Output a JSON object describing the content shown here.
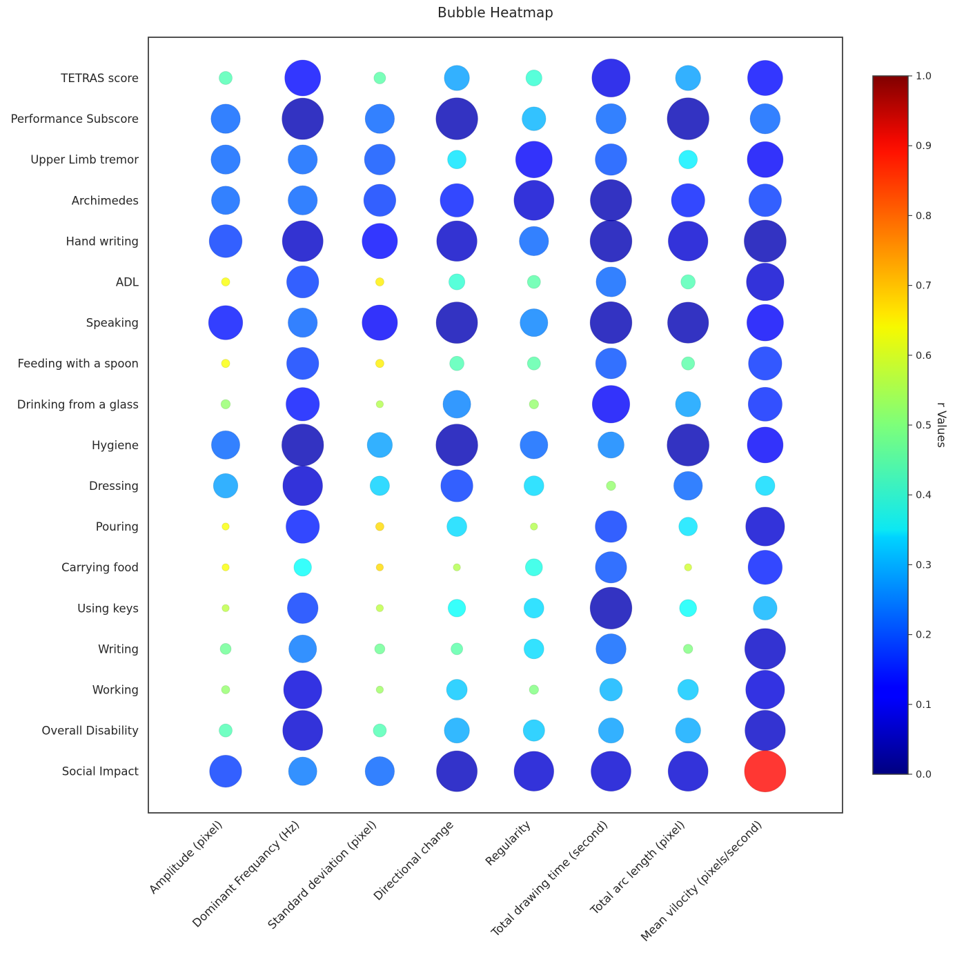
{
  "chart_data": {
    "type": "scatter",
    "subtype": "bubble-heatmap",
    "title": "Bubble Heatmap",
    "xlabel": "",
    "ylabel": "",
    "x_categories": [
      "Amplitude (pixel)",
      "Dominant Frequancy (Hz)",
      "Standard deviation (pixel)",
      "Directional change",
      "Regularity",
      "Total drawing time (second)",
      "Total arc length (pixel)",
      "Mean vilocity (pixels/second)"
    ],
    "y_categories": [
      "TETRAS score",
      "Performance Subscore ",
      "Upper Limb tremor ",
      "Archimedes ",
      "Hand writing ",
      "ADL",
      "Speaking",
      "Feeding with a spoon",
      "Drinking from a glass",
      "Hygiene",
      "Dressing ",
      "Pouring",
      "Carrying food",
      "Using keys ",
      "Writing ",
      "Working",
      "Overall Disability ",
      "Social Impact "
    ],
    "value_description": "each cell: r = colour value (jet colormap, 0-1); size = relative bubble magnitude (0-1)",
    "cells": [
      [
        [
          0.45,
          0.1
        ],
        [
          0.13,
          0.75
        ],
        [
          0.46,
          0.08
        ],
        [
          0.28,
          0.37
        ],
        [
          0.42,
          0.15
        ],
        [
          0.1,
          0.85
        ],
        [
          0.28,
          0.37
        ],
        [
          0.13,
          0.72
        ]
      ],
      [
        [
          0.22,
          0.5
        ],
        [
          0.05,
          1.0
        ],
        [
          0.22,
          0.5
        ],
        [
          0.05,
          1.02
        ],
        [
          0.3,
          0.33
        ],
        [
          0.22,
          0.53
        ],
        [
          0.05,
          1.02
        ],
        [
          0.22,
          0.53
        ]
      ],
      [
        [
          0.22,
          0.5
        ],
        [
          0.22,
          0.5
        ],
        [
          0.2,
          0.55
        ],
        [
          0.35,
          0.2
        ],
        [
          0.12,
          0.78
        ],
        [
          0.2,
          0.58
        ],
        [
          0.36,
          0.2
        ],
        [
          0.12,
          0.75
        ]
      ],
      [
        [
          0.22,
          0.47
        ],
        [
          0.22,
          0.5
        ],
        [
          0.18,
          0.6
        ],
        [
          0.15,
          0.65
        ],
        [
          0.08,
          0.93
        ],
        [
          0.05,
          1.0
        ],
        [
          0.15,
          0.65
        ],
        [
          0.18,
          0.62
        ]
      ],
      [
        [
          0.18,
          0.63
        ],
        [
          0.07,
          0.97
        ],
        [
          0.13,
          0.73
        ],
        [
          0.07,
          0.95
        ],
        [
          0.22,
          0.5
        ],
        [
          0.05,
          1.02
        ],
        [
          0.08,
          0.92
        ],
        [
          0.05,
          1.03
        ]
      ],
      [
        [
          0.62,
          0.04
        ],
        [
          0.18,
          0.6
        ],
        [
          0.64,
          0.04
        ],
        [
          0.42,
          0.15
        ],
        [
          0.46,
          0.1
        ],
        [
          0.22,
          0.52
        ],
        [
          0.45,
          0.12
        ],
        [
          0.08,
          0.82
        ]
      ],
      [
        [
          0.14,
          0.68
        ],
        [
          0.22,
          0.5
        ],
        [
          0.12,
          0.73
        ],
        [
          0.05,
          1.0
        ],
        [
          0.25,
          0.45
        ],
        [
          0.05,
          1.02
        ],
        [
          0.05,
          0.98
        ],
        [
          0.12,
          0.78
        ]
      ],
      [
        [
          0.62,
          0.04
        ],
        [
          0.18,
          0.6
        ],
        [
          0.64,
          0.04
        ],
        [
          0.45,
          0.12
        ],
        [
          0.46,
          0.1
        ],
        [
          0.2,
          0.55
        ],
        [
          0.46,
          0.1
        ],
        [
          0.17,
          0.65
        ]
      ],
      [
        [
          0.52,
          0.05
        ],
        [
          0.14,
          0.65
        ],
        [
          0.55,
          0.03
        ],
        [
          0.25,
          0.45
        ],
        [
          0.52,
          0.05
        ],
        [
          0.12,
          0.82
        ],
        [
          0.28,
          0.37
        ],
        [
          0.16,
          0.67
        ]
      ],
      [
        [
          0.22,
          0.47
        ],
        [
          0.05,
          1.02
        ],
        [
          0.28,
          0.37
        ],
        [
          0.05,
          1.02
        ],
        [
          0.22,
          0.45
        ],
        [
          0.25,
          0.4
        ],
        [
          0.05,
          1.03
        ],
        [
          0.12,
          0.75
        ]
      ],
      [
        [
          0.28,
          0.35
        ],
        [
          0.08,
          0.92
        ],
        [
          0.33,
          0.22
        ],
        [
          0.18,
          0.6
        ],
        [
          0.34,
          0.23
        ],
        [
          0.52,
          0.05
        ],
        [
          0.22,
          0.48
        ],
        [
          0.34,
          0.22
        ]
      ],
      [
        [
          0.62,
          0.03
        ],
        [
          0.15,
          0.65
        ],
        [
          0.66,
          0.04
        ],
        [
          0.34,
          0.23
        ],
        [
          0.55,
          0.03
        ],
        [
          0.18,
          0.58
        ],
        [
          0.35,
          0.2
        ],
        [
          0.08,
          0.88
        ]
      ],
      [
        [
          0.62,
          0.03
        ],
        [
          0.38,
          0.18
        ],
        [
          0.66,
          0.03
        ],
        [
          0.55,
          0.03
        ],
        [
          0.4,
          0.17
        ],
        [
          0.2,
          0.57
        ],
        [
          0.58,
          0.03
        ],
        [
          0.15,
          0.68
        ]
      ],
      [
        [
          0.56,
          0.03
        ],
        [
          0.18,
          0.55
        ],
        [
          0.56,
          0.03
        ],
        [
          0.38,
          0.18
        ],
        [
          0.34,
          0.23
        ],
        [
          0.05,
          1.02
        ],
        [
          0.38,
          0.17
        ],
        [
          0.3,
          0.33
        ]
      ],
      [
        [
          0.48,
          0.07
        ],
        [
          0.24,
          0.45
        ],
        [
          0.48,
          0.06
        ],
        [
          0.46,
          0.08
        ],
        [
          0.34,
          0.23
        ],
        [
          0.22,
          0.53
        ],
        [
          0.5,
          0.05
        ],
        [
          0.07,
          0.97
        ]
      ],
      [
        [
          0.52,
          0.04
        ],
        [
          0.09,
          0.85
        ],
        [
          0.53,
          0.03
        ],
        [
          0.32,
          0.25
        ],
        [
          0.5,
          0.05
        ],
        [
          0.3,
          0.3
        ],
        [
          0.32,
          0.25
        ],
        [
          0.09,
          0.88
        ]
      ],
      [
        [
          0.45,
          0.1
        ],
        [
          0.08,
          0.93
        ],
        [
          0.45,
          0.1
        ],
        [
          0.29,
          0.37
        ],
        [
          0.32,
          0.27
        ],
        [
          0.28,
          0.37
        ],
        [
          0.29,
          0.37
        ],
        [
          0.07,
          0.95
        ]
      ],
      [
        [
          0.18,
          0.6
        ],
        [
          0.24,
          0.47
        ],
        [
          0.22,
          0.5
        ],
        [
          0.06,
          0.97
        ],
        [
          0.08,
          0.92
        ],
        [
          0.08,
          0.93
        ],
        [
          0.08,
          0.93
        ],
        [
          0.87,
          1.0
        ]
      ]
    ],
    "colorbar": {
      "label": "r Values",
      "colormap": "jet",
      "range": [
        0.0,
        1.0
      ],
      "ticks": [
        "0.0",
        "0.1",
        "0.2",
        "0.3",
        "0.4",
        "0.5",
        "0.6",
        "0.7",
        "0.8",
        "0.9",
        "1.0"
      ]
    },
    "grid": false,
    "bubble_alpha": 0.8
  }
}
